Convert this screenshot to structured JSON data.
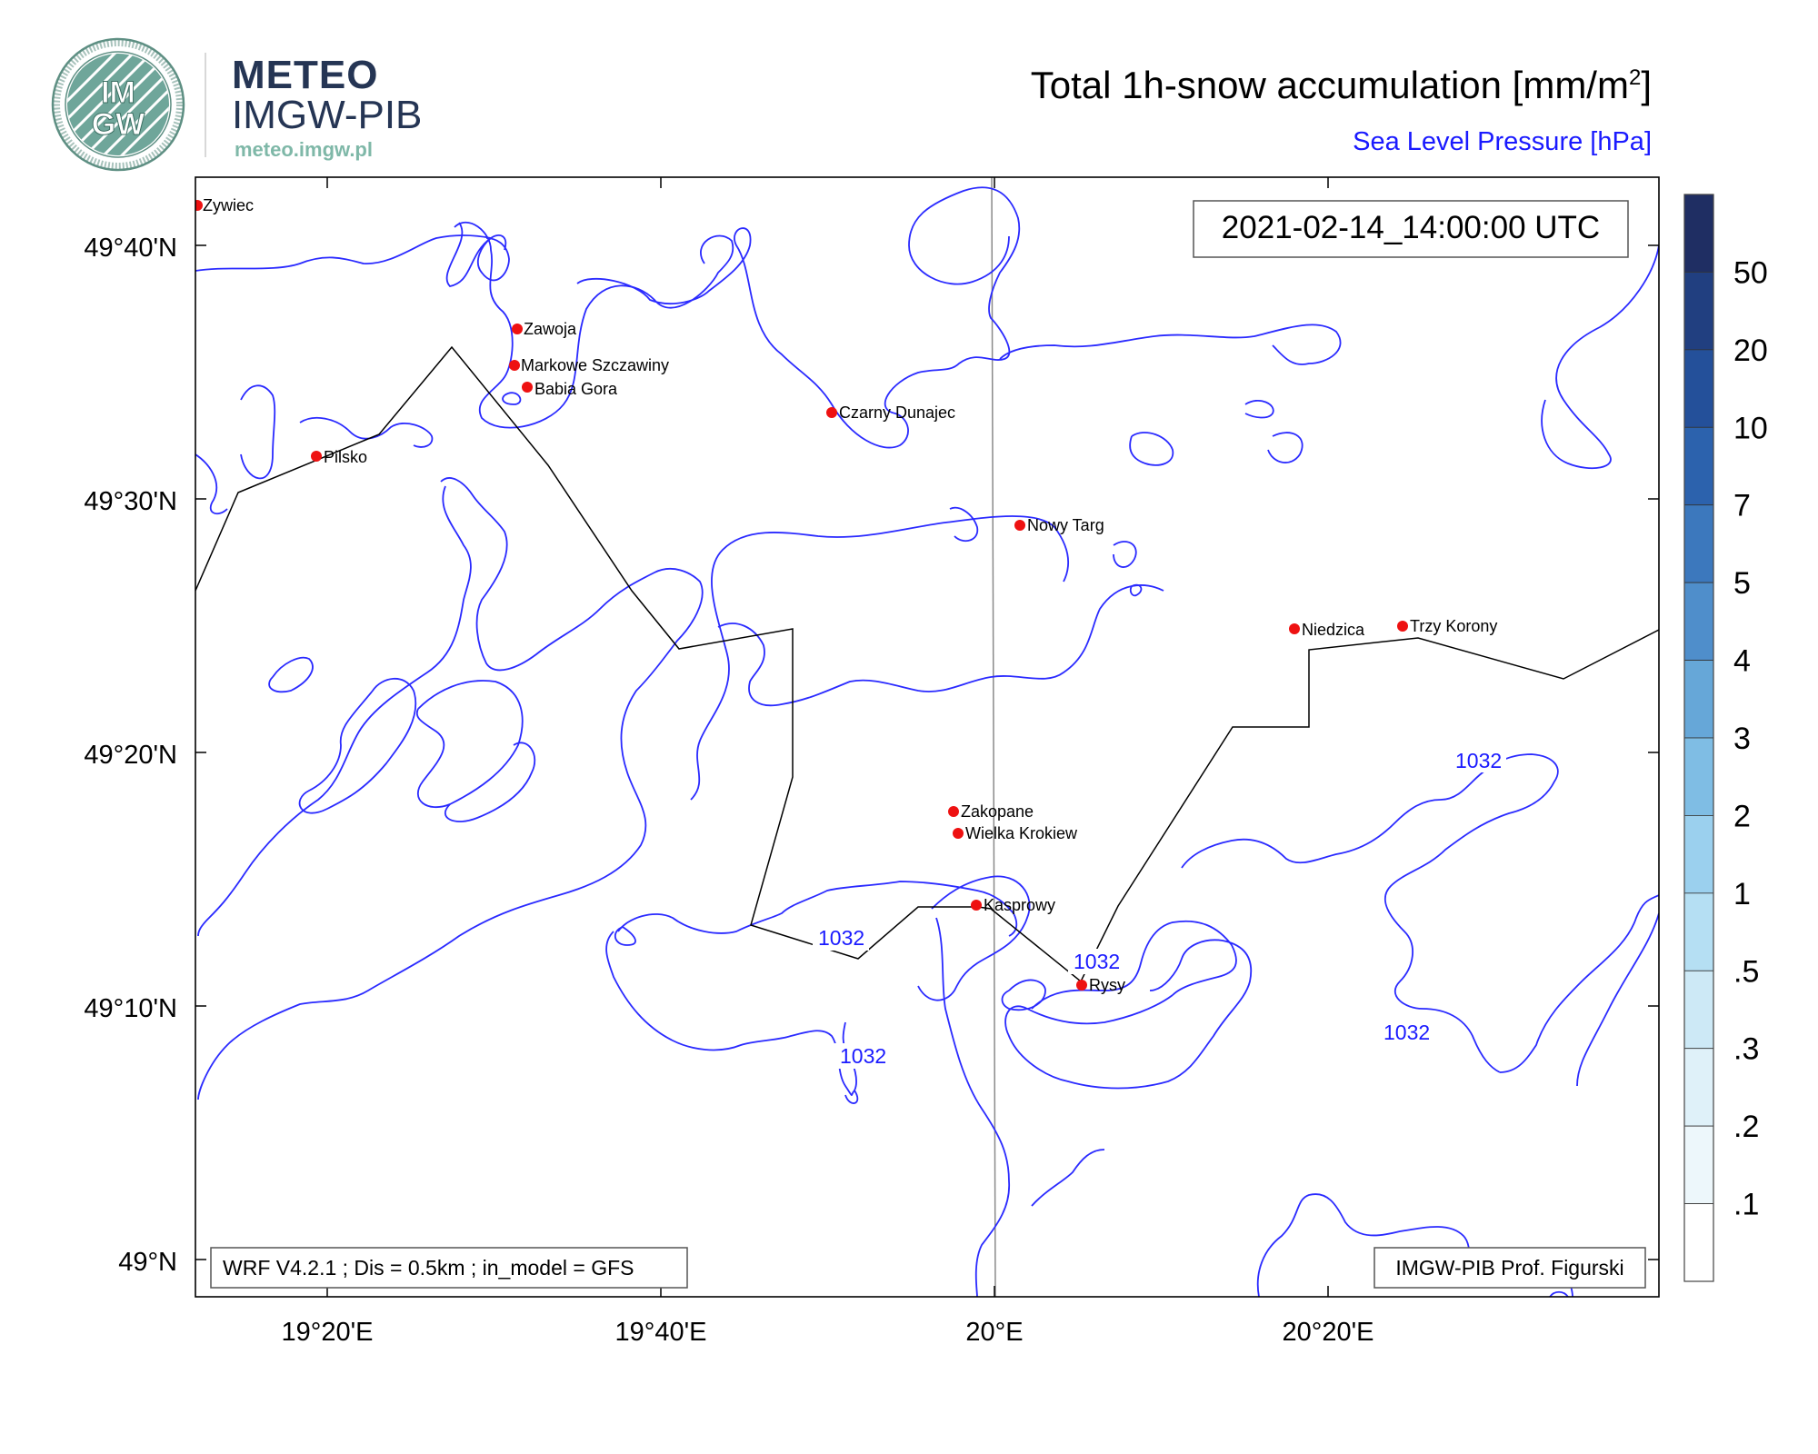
{
  "header": {
    "logo": {
      "brand": "METEO",
      "org": "IMGW-PIB",
      "url": "meteo.imgw.pl",
      "seal_text": "IMGW",
      "seal_ring_text": "INSTYTUT METEOROLOGII I GOSPODARKI WODNEJ · PAŃSTWOWY INSTYTUT BADAWCZY"
    },
    "title_main": "Total 1h-snow accumulation [mm/m",
    "title_main_sup": "2",
    "title_main_end": "]",
    "title_sub": "Sea Level Pressure [hPa]"
  },
  "map": {
    "timestamp": "2021-02-14_14:00:00 UTC",
    "model_info": "WRF V4.2.1 ; Dis = 0.5km ; in_model = GFS",
    "credit": "IMGW-PIB Prof. Figurski",
    "lat_labels": [
      "49°40'N",
      "49°30'N",
      "49°20'N",
      "49°10'N",
      "49°N"
    ],
    "lon_labels": [
      "19°20'E",
      "19°40'E",
      "20°E",
      "20°20'E"
    ],
    "cities": [
      {
        "name": "Zywiec"
      },
      {
        "name": "Zawoja"
      },
      {
        "name": "Markowe Szczawiny"
      },
      {
        "name": "Babia Gora"
      },
      {
        "name": "Czarny Dunajec"
      },
      {
        "name": "Pilsko"
      },
      {
        "name": "Nowy Targ"
      },
      {
        "name": "Niedzica"
      },
      {
        "name": "Trzy Korony"
      },
      {
        "name": "Zakopane"
      },
      {
        "name": "Wielka Krokiew"
      },
      {
        "name": "Kasprowy"
      },
      {
        "name": "Rysy"
      }
    ],
    "contour_labels": [
      "1032",
      "1032",
      "1032",
      "1032",
      "1032"
    ],
    "colors": {
      "contour": "#2a2aff",
      "border": "#000000",
      "city_marker": "#ee1111",
      "meridian": "#888888"
    }
  },
  "colorbar": {
    "labels": [
      "50",
      "20",
      "10",
      "7",
      "5",
      "4",
      "3",
      "2",
      "1",
      ".5",
      ".3",
      ".2",
      ".1"
    ],
    "colors": [
      "#1f2e63",
      "#213f80",
      "#24509a",
      "#2c62ad",
      "#3c78bd",
      "#4f8ecb",
      "#66a7d8",
      "#7fbde4",
      "#9bd0ee",
      "#b5dff3",
      "#cde9f6",
      "#dff1f9",
      "#edf7fb",
      "#ffffff"
    ]
  }
}
